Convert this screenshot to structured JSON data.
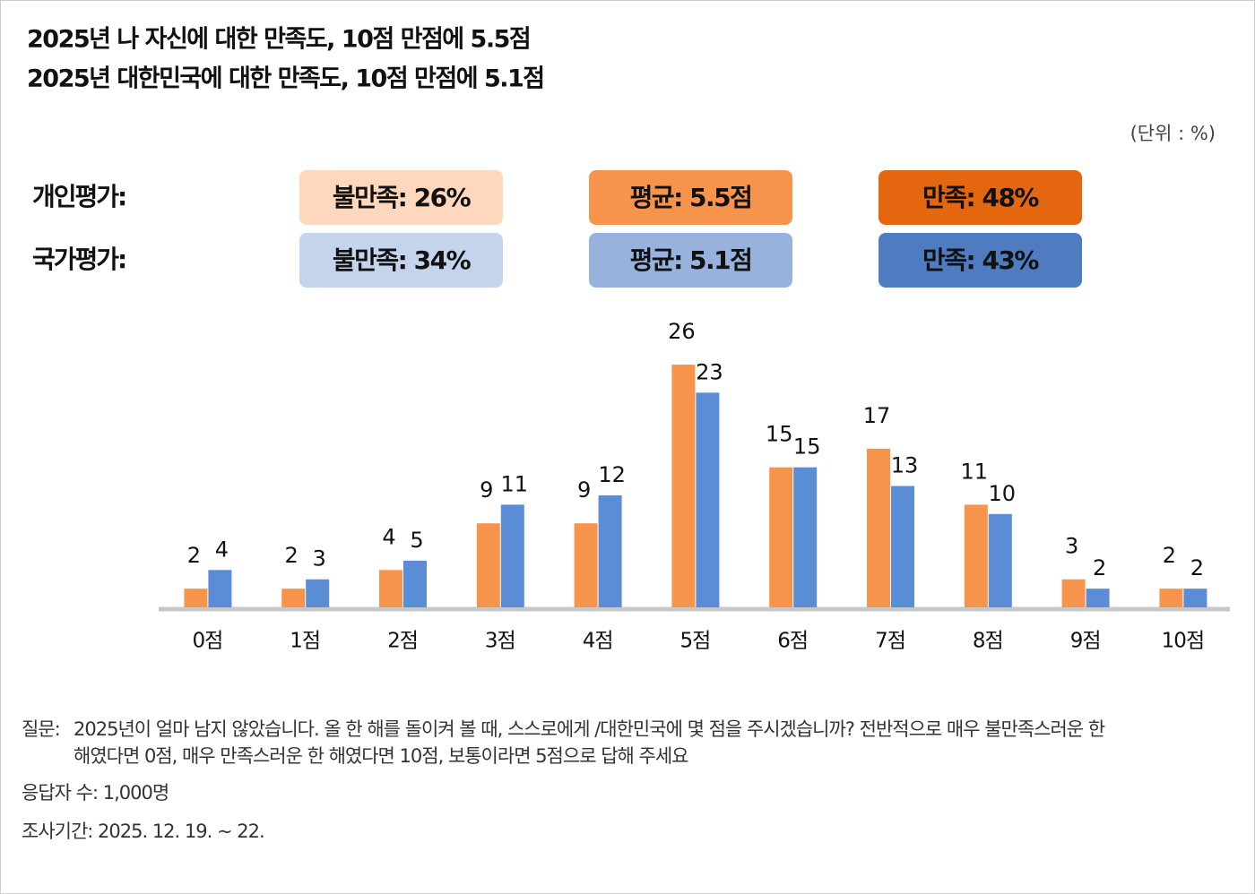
{
  "chart_data": {
    "type": "bar",
    "title_lines": [
      "2025년 나 자신에 대한 만족도, 10점 만점에 5.5점",
      "2025년 대한민국에 대한 만족도, 10점 만점에 5.1점"
    ],
    "unit": "(단위 : %)",
    "summary": [
      {
        "label": "개인평가:",
        "boxes": [
          {
            "text": "불만족: 26%",
            "color": "#fdd8bc"
          },
          {
            "text": "평균: 5.5점",
            "color": "#f7944b"
          },
          {
            "text": "만족: 48%",
            "color": "#e4670f"
          }
        ]
      },
      {
        "label": "국가평가:",
        "boxes": [
          {
            "text": "불만족: 34%",
            "color": "#c3d4ec"
          },
          {
            "text": "평균: 5.1점",
            "color": "#97b3dd"
          },
          {
            "text": "만족: 43%",
            "color": "#4f7cc0"
          }
        ]
      }
    ],
    "categories": [
      "0점",
      "1점",
      "2점",
      "3점",
      "4점",
      "5점",
      "6점",
      "7점",
      "8점",
      "9점",
      "10점"
    ],
    "series": [
      {
        "color": "#f7944b",
        "values": [
          2,
          2,
          4,
          9,
          9,
          26,
          15,
          17,
          11,
          3,
          2
        ]
      },
      {
        "color": "#5b8dd6",
        "values": [
          4,
          3,
          5,
          11,
          12,
          23,
          15,
          13,
          10,
          2,
          2
        ]
      }
    ],
    "footnote": {
      "question_label": "질문:",
      "question_lines": [
        "2025년이 얼마 남지 않았습니다. 올 한 해를 돌이켜 볼 때, 스스로에게 /대한민국에 몇 점을 주시겠습니까? 전반적으로 매우 불만족스러운 한",
        "해였다면 0점, 매우  만족스러운 한 해였다면 10점, 보통이라면 5점으로 답해 주세요"
      ],
      "respondents": "응답자 수: 1,000명",
      "period": "조사기간: 2025. 12. 19. ~ 22."
    }
  }
}
